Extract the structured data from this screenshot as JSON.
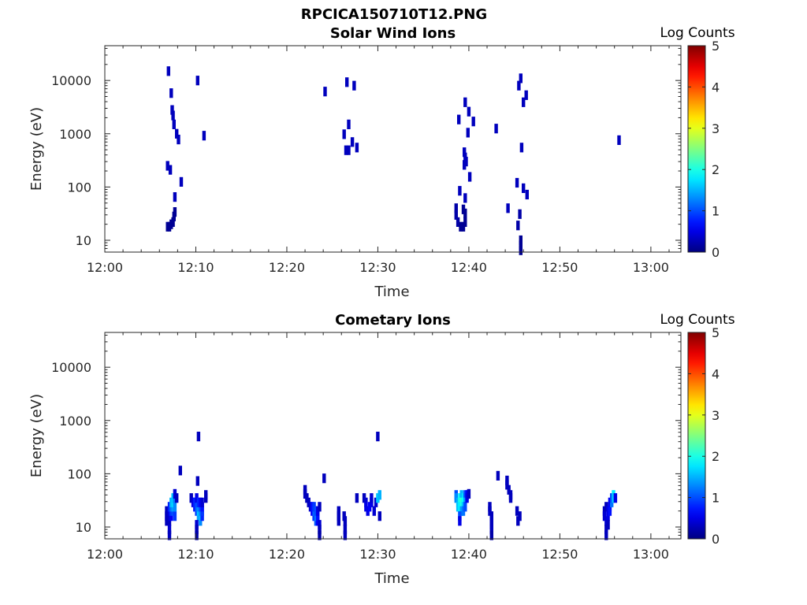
{
  "figure_title": "RPCICA150710T12.PNG",
  "chart_data": [
    {
      "type": "heatmap",
      "title": "Solar Wind Ions",
      "xlabel": "Time",
      "ylabel": "Energy (eV)",
      "x_ticks": [
        "12:00",
        "12:10",
        "12:20",
        "12:30",
        "12:40",
        "12:50",
        "13:00"
      ],
      "x_range_min": [
        0,
        63.3
      ],
      "y_scale": "log",
      "y_ticks": [
        10,
        100,
        1000,
        10000
      ],
      "y_tick_labels": [
        "10",
        "100",
        "1000",
        "10000"
      ],
      "ylim": [
        6,
        45000
      ],
      "colorbar": {
        "label": "Log Counts",
        "range": [
          0,
          5
        ],
        "ticks": [
          "0",
          "1",
          "2",
          "3",
          "4",
          "5"
        ]
      },
      "points": [
        [
          7.0,
          15000,
          0.3
        ],
        [
          7.3,
          5800,
          0.3
        ],
        [
          7.4,
          2800,
          0.3
        ],
        [
          7.5,
          2200,
          0.3
        ],
        [
          7.6,
          1500,
          0.3
        ],
        [
          7.9,
          1000,
          0.3
        ],
        [
          8.1,
          780,
          0.3
        ],
        [
          6.9,
          250,
          0.3
        ],
        [
          7.2,
          210,
          0.3
        ],
        [
          8.4,
          125,
          0.3
        ],
        [
          7.7,
          65,
          0.3
        ],
        [
          10.2,
          10000,
          0.3
        ],
        [
          10.9,
          920,
          0.3
        ],
        [
          6.9,
          18,
          0.1
        ],
        [
          7.1,
          18,
          0.1
        ],
        [
          7.3,
          20,
          0.1
        ],
        [
          7.5,
          22,
          0.1
        ],
        [
          7.6,
          28,
          0.1
        ],
        [
          7.7,
          34,
          0.1
        ],
        [
          24.2,
          6200,
          0.3
        ],
        [
          26.6,
          9300,
          0.3
        ],
        [
          27.4,
          8000,
          0.3
        ],
        [
          26.8,
          1500,
          0.3
        ],
        [
          26.3,
          980,
          0.3
        ],
        [
          27.2,
          700,
          0.3
        ],
        [
          26.5,
          490,
          0.3
        ],
        [
          26.8,
          490,
          0.3
        ],
        [
          27.7,
          550,
          0.3
        ],
        [
          38.9,
          1850,
          0.3
        ],
        [
          39.6,
          3900,
          0.3
        ],
        [
          40.0,
          2600,
          0.3
        ],
        [
          40.5,
          1700,
          0.3
        ],
        [
          39.9,
          1050,
          0.3
        ],
        [
          39.5,
          450,
          0.3
        ],
        [
          39.6,
          360,
          0.3
        ],
        [
          39.7,
          300,
          0.3
        ],
        [
          39.5,
          260,
          0.3
        ],
        [
          40.1,
          155,
          0.3
        ],
        [
          39.0,
          85,
          0.3
        ],
        [
          39.6,
          62,
          0.3
        ],
        [
          38.6,
          40,
          0.2
        ],
        [
          38.6,
          30,
          0.2
        ],
        [
          38.8,
          22,
          0.2
        ],
        [
          39.1,
          18,
          0.1
        ],
        [
          39.4,
          18,
          0.1
        ],
        [
          39.6,
          22,
          0.1
        ],
        [
          39.6,
          32,
          0.1
        ],
        [
          39.4,
          38,
          0.1
        ],
        [
          43.0,
          1250,
          0.3
        ],
        [
          45.7,
          11000,
          0.3
        ],
        [
          45.5,
          8000,
          0.3
        ],
        [
          46.3,
          5300,
          0.3
        ],
        [
          46.0,
          3900,
          0.3
        ],
        [
          45.8,
          550,
          0.3
        ],
        [
          45.3,
          120,
          0.3
        ],
        [
          46.0,
          95,
          0.3
        ],
        [
          46.4,
          72,
          0.3
        ],
        [
          44.3,
          40,
          0.3
        ],
        [
          45.6,
          31,
          0.2
        ],
        [
          45.4,
          19,
          0.2
        ],
        [
          45.7,
          10,
          0.1
        ],
        [
          45.7,
          8,
          0.1
        ],
        [
          45.7,
          6.5,
          0.1
        ],
        [
          56.5,
          760,
          0.3
        ]
      ]
    },
    {
      "type": "heatmap",
      "title": "Cometary Ions",
      "xlabel": "Time",
      "ylabel": "Energy (eV)",
      "x_ticks": [
        "12:00",
        "12:10",
        "12:20",
        "12:30",
        "12:40",
        "12:50",
        "13:00"
      ],
      "x_range_min": [
        0,
        63.3
      ],
      "y_scale": "log",
      "y_ticks": [
        10,
        100,
        1000,
        10000
      ],
      "y_tick_labels": [
        "10",
        "100",
        "1000",
        "10000"
      ],
      "ylim": [
        6,
        45000
      ],
      "colorbar": {
        "label": "Log Counts",
        "range": [
          0,
          5
        ],
        "ticks": [
          "0",
          "1",
          "2",
          "3",
          "4",
          "5"
        ]
      },
      "points": [
        [
          6.8,
          13,
          0.3
        ],
        [
          6.8,
          16,
          0.3
        ],
        [
          6.8,
          20,
          0.3
        ],
        [
          7.1,
          13,
          0.3
        ],
        [
          7.1,
          16,
          0.4
        ],
        [
          7.1,
          20,
          0.5
        ],
        [
          7.1,
          24,
          0.8
        ],
        [
          7.1,
          9,
          0.4
        ],
        [
          7.1,
          7,
          0.3
        ],
        [
          7.3,
          16,
          0.6
        ],
        [
          7.3,
          20,
          0.9
        ],
        [
          7.3,
          24,
          1.2
        ],
        [
          7.3,
          29,
          1.5
        ],
        [
          7.5,
          20,
          1.0
        ],
        [
          7.5,
          24,
          1.4
        ],
        [
          7.5,
          29,
          1.7
        ],
        [
          7.5,
          35,
          1.6
        ],
        [
          7.7,
          16,
          0.9
        ],
        [
          7.7,
          24,
          1.3
        ],
        [
          7.7,
          35,
          1.2
        ],
        [
          7.7,
          42,
          0.4
        ],
        [
          7.9,
          35,
          0.3
        ],
        [
          8.3,
          115,
          0.3
        ],
        [
          9.5,
          35,
          0.3
        ],
        [
          9.7,
          29,
          0.5
        ],
        [
          9.9,
          24,
          0.7
        ],
        [
          9.9,
          29,
          0.8
        ],
        [
          10.1,
          20,
          0.9
        ],
        [
          10.1,
          24,
          1.1
        ],
        [
          10.1,
          29,
          1.0
        ],
        [
          10.1,
          35,
          0.5
        ],
        [
          10.3,
          16,
          1.4
        ],
        [
          10.3,
          20,
          1.6
        ],
        [
          10.3,
          24,
          1.3
        ],
        [
          10.3,
          29,
          0.8
        ],
        [
          10.5,
          13,
          1.3
        ],
        [
          10.5,
          16,
          1.5
        ],
        [
          10.5,
          20,
          1.3
        ],
        [
          10.5,
          24,
          1.0
        ],
        [
          10.5,
          29,
          0.6
        ],
        [
          10.7,
          16,
          0.8
        ],
        [
          10.7,
          20,
          0.9
        ],
        [
          10.7,
          24,
          0.7
        ],
        [
          10.7,
          29,
          0.4
        ],
        [
          10.1,
          11,
          0.4
        ],
        [
          10.1,
          9,
          0.3
        ],
        [
          10.1,
          7,
          0.2
        ],
        [
          11.1,
          35,
          0.3
        ],
        [
          11.1,
          40,
          0.3
        ],
        [
          10.3,
          500,
          0.3
        ],
        [
          10.2,
          73,
          0.3
        ],
        [
          22.0,
          42,
          0.3
        ],
        [
          22.0,
          50,
          0.3
        ],
        [
          22.2,
          35,
          0.3
        ],
        [
          22.4,
          29,
          0.3
        ],
        [
          22.6,
          24,
          0.4
        ],
        [
          22.8,
          20,
          0.6
        ],
        [
          22.8,
          24,
          0.7
        ],
        [
          23.0,
          16,
          0.9
        ],
        [
          23.0,
          20,
          1.1
        ],
        [
          23.0,
          24,
          0.9
        ],
        [
          23.2,
          13,
          1.0
        ],
        [
          23.2,
          16,
          1.2
        ],
        [
          23.2,
          20,
          1.0
        ],
        [
          23.4,
          13,
          0.6
        ],
        [
          23.4,
          16,
          0.7
        ],
        [
          23.4,
          20,
          0.5
        ],
        [
          23.6,
          24,
          0.3
        ],
        [
          23.6,
          11,
          0.4
        ],
        [
          23.6,
          9,
          0.3
        ],
        [
          23.6,
          7,
          0.2
        ],
        [
          24.1,
          82,
          0.3
        ],
        [
          25.7,
          13,
          0.3
        ],
        [
          25.7,
          16,
          0.3
        ],
        [
          25.7,
          20,
          0.3
        ],
        [
          26.3,
          16,
          0.3
        ],
        [
          26.4,
          13,
          0.3
        ],
        [
          26.4,
          9,
          0.3
        ],
        [
          26.4,
          7,
          0.3
        ],
        [
          27.7,
          35,
          0.3
        ],
        [
          28.5,
          35,
          0.3
        ],
        [
          28.7,
          29,
          0.4
        ],
        [
          28.7,
          24,
          0.5
        ],
        [
          28.9,
          20,
          0.5
        ],
        [
          29.1,
          24,
          0.6
        ],
        [
          29.3,
          29,
          0.5
        ],
        [
          29.3,
          35,
          0.4
        ],
        [
          29.6,
          20,
          0.4
        ],
        [
          29.8,
          29,
          0.4
        ],
        [
          30.0,
          35,
          1.6
        ],
        [
          30.2,
          40,
          1.5
        ],
        [
          30.2,
          16,
          0.3
        ],
        [
          30.0,
          500,
          0.3
        ],
        [
          38.6,
          40,
          1.0
        ],
        [
          38.6,
          35,
          1.3
        ],
        [
          38.8,
          29,
          1.5
        ],
        [
          38.8,
          24,
          1.6
        ],
        [
          39.0,
          35,
          1.8
        ],
        [
          39.0,
          29,
          2.0
        ],
        [
          39.0,
          24,
          1.8
        ],
        [
          39.2,
          40,
          1.5
        ],
        [
          39.2,
          29,
          2.1
        ],
        [
          39.2,
          24,
          2.0
        ],
        [
          39.2,
          20,
          1.4
        ],
        [
          39.4,
          35,
          1.7
        ],
        [
          39.4,
          29,
          1.9
        ],
        [
          39.4,
          24,
          1.6
        ],
        [
          39.4,
          20,
          1.2
        ],
        [
          39.6,
          40,
          1.0
        ],
        [
          39.6,
          29,
          1.4
        ],
        [
          39.6,
          24,
          1.0
        ],
        [
          39.8,
          40,
          0.6
        ],
        [
          39.8,
          35,
          0.5
        ],
        [
          39.0,
          16,
          1.0
        ],
        [
          39.0,
          13,
          0.5
        ],
        [
          40.0,
          42,
          0.3
        ],
        [
          42.3,
          24,
          0.3
        ],
        [
          42.3,
          20,
          0.3
        ],
        [
          42.5,
          16,
          0.3
        ],
        [
          42.5,
          13,
          0.3
        ],
        [
          42.5,
          11,
          0.3
        ],
        [
          42.5,
          9,
          0.3
        ],
        [
          42.5,
          7,
          0.2
        ],
        [
          43.2,
          92,
          0.3
        ],
        [
          44.2,
          75,
          0.3
        ],
        [
          44.2,
          62,
          0.3
        ],
        [
          44.4,
          50,
          0.3
        ],
        [
          44.6,
          40,
          0.3
        ],
        [
          44.6,
          35,
          0.3
        ],
        [
          45.3,
          20,
          0.3
        ],
        [
          45.6,
          16,
          0.3
        ],
        [
          45.4,
          13,
          0.3
        ],
        [
          54.9,
          20,
          0.3
        ],
        [
          54.9,
          16,
          0.4
        ],
        [
          55.1,
          13,
          0.4
        ],
        [
          55.1,
          24,
          0.3
        ],
        [
          55.3,
          20,
          0.5
        ],
        [
          55.3,
          16,
          0.5
        ],
        [
          55.5,
          24,
          0.8
        ],
        [
          55.5,
          20,
          0.7
        ],
        [
          55.5,
          29,
          0.6
        ],
        [
          55.7,
          29,
          1.2
        ],
        [
          55.7,
          35,
          1.0
        ],
        [
          55.9,
          40,
          1.8
        ],
        [
          55.9,
          35,
          1.6
        ],
        [
          56.1,
          35,
          0.5
        ],
        [
          55.1,
          9,
          0.3
        ],
        [
          55.1,
          7,
          0.3
        ],
        [
          55.3,
          11,
          0.3
        ]
      ]
    }
  ]
}
